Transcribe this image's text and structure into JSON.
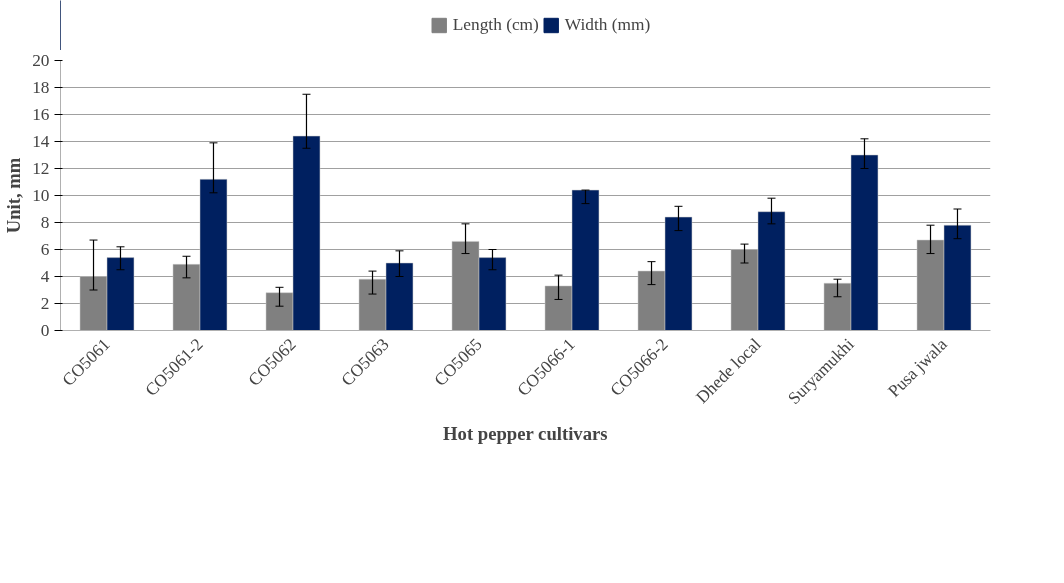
{
  "chart_data": {
    "type": "bar",
    "xlabel": "Hot pepper cultivars",
    "ylabel": "Unit, mm",
    "categories": [
      "CO5061",
      "CO5061-2",
      "CO5062",
      "CO5063",
      "CO5065",
      "CO5066-1",
      "CO5066-2",
      "Dhede local",
      "Suryamukhi",
      "Pusa jwala"
    ],
    "series": [
      {
        "name": "Length (cm)",
        "color": "#808080",
        "values": [
          4.0,
          4.9,
          2.8,
          3.8,
          6.6,
          3.3,
          4.4,
          6.0,
          3.5,
          6.7
        ],
        "errors": [
          [
            3.0,
            6.7
          ],
          [
            3.9,
            5.5
          ],
          [
            1.8,
            3.2
          ],
          [
            2.7,
            4.4
          ],
          [
            5.7,
            7.9
          ],
          [
            2.3,
            4.1
          ],
          [
            3.4,
            5.1
          ],
          [
            5.0,
            6.4
          ],
          [
            2.5,
            3.8
          ],
          [
            5.7,
            7.8
          ]
        ]
      },
      {
        "name": "Width (mm)",
        "color": "#002060",
        "values": [
          5.4,
          11.2,
          14.4,
          5.0,
          5.4,
          10.4,
          8.4,
          8.8,
          13.0,
          7.8
        ],
        "errors": [
          [
            4.5,
            6.2
          ],
          [
            10.2,
            13.9
          ],
          [
            13.5,
            17.5
          ],
          [
            4.0,
            5.9
          ],
          [
            4.5,
            6.0
          ],
          [
            9.4,
            10.4
          ],
          [
            7.4,
            9.2
          ],
          [
            7.9,
            9.8
          ],
          [
            12.0,
            14.2
          ],
          [
            6.8,
            9.0
          ]
        ]
      }
    ],
    "ylim": [
      0,
      20
    ],
    "yticks": [
      0,
      2,
      4,
      6,
      8,
      10,
      12,
      14,
      16,
      18,
      20
    ],
    "grid": "y",
    "legend": "top"
  }
}
